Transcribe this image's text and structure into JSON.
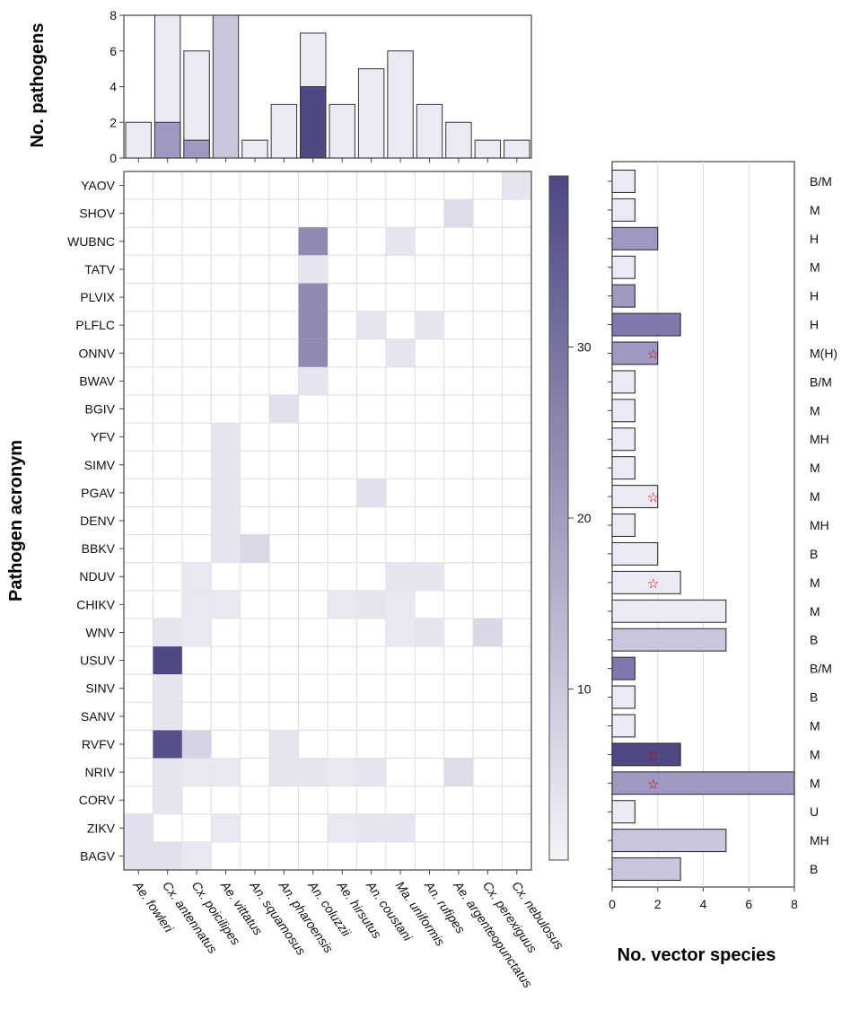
{
  "chart_data": [
    {
      "type": "bar",
      "ylabel": "No. pathogens",
      "ylim": [
        0,
        8
      ],
      "yticks": [
        0,
        2,
        4,
        6,
        8
      ],
      "categories": [
        "Ae. fowleri",
        "Cx. antennatus",
        "Cx. poicilipes",
        "Ae. vittatus",
        "An. squamosus",
        "An. pharoensis",
        "An. coluzzii",
        "Ae. hirsutus",
        "An. coustani",
        "Ma. uniformis",
        "An. rufipes",
        "Ae. argenteopunctatus",
        "Cx. perexiguus",
        "Cx. nebulosus"
      ],
      "values": [
        2,
        8,
        6,
        8,
        1,
        3,
        7,
        3,
        5,
        6,
        3,
        2,
        1,
        1
      ],
      "highlight_values": [
        0,
        2,
        1,
        0,
        0,
        0,
        4,
        0,
        0,
        0,
        0,
        0,
        0,
        0
      ],
      "color_levels": [
        1,
        1,
        1,
        2,
        1,
        1,
        1,
        1,
        1,
        1,
        1,
        1,
        1,
        1
      ]
    },
    {
      "type": "heatmap",
      "ylabel": "Pathogen acronym",
      "x": [
        "Ae. fowleri",
        "Cx. antennatus",
        "Cx. poicilipes",
        "Ae. vittatus",
        "An. squamosus",
        "An. pharoensis",
        "An. coluzzii",
        "Ae. hirsutus",
        "An. coustani",
        "Ma. uniformis",
        "An. rufipes",
        "Ae. argenteopunctatus",
        "Cx. perexiguus",
        "Cx. nebulosus"
      ],
      "y": [
        "YAOV",
        "SHOV",
        "WUBNC",
        "TATV",
        "PLVIX",
        "PLFLC",
        "ONNV",
        "BWAV",
        "BGIV",
        "YFV",
        "SIMV",
        "PGAV",
        "DENV",
        "BBKV",
        "NDUV",
        "CHIKV",
        "WNV",
        "USUV",
        "SINV",
        "SANV",
        "RVFV",
        "NRIV",
        "CORV",
        "ZIKV",
        "BAGV"
      ],
      "cells": [
        [
          "YAOV",
          "Cx. nebulosus",
          2
        ],
        [
          "SHOV",
          "Ae. argenteopunctatus",
          4
        ],
        [
          "WUBNC",
          "An. coluzzii",
          24
        ],
        [
          "WUBNC",
          "Ma. uniformis",
          2
        ],
        [
          "TATV",
          "An. coluzzii",
          2
        ],
        [
          "PLVIX",
          "An. coluzzii",
          24
        ],
        [
          "PLFLC",
          "An. coluzzii",
          24
        ],
        [
          "PLFLC",
          "An. coustani",
          2
        ],
        [
          "PLFLC",
          "An. rufipes",
          2
        ],
        [
          "ONNV",
          "An. coluzzii",
          24
        ],
        [
          "ONNV",
          "Ma. uniformis",
          2
        ],
        [
          "BWAV",
          "An. coluzzii",
          2
        ],
        [
          "BGIV",
          "An. pharoensis",
          3
        ],
        [
          "YFV",
          "Ae. vittatus",
          2
        ],
        [
          "SIMV",
          "Ae. vittatus",
          2
        ],
        [
          "PGAV",
          "Ae. vittatus",
          2
        ],
        [
          "PGAV",
          "An. coustani",
          3
        ],
        [
          "DENV",
          "Ae. vittatus",
          2
        ],
        [
          "BBKV",
          "Ae. vittatus",
          2
        ],
        [
          "BBKV",
          "An. squamosus",
          5
        ],
        [
          "NDUV",
          "Cx. poicilipes",
          1
        ],
        [
          "NDUV",
          "Ma. uniformis",
          2
        ],
        [
          "NDUV",
          "An. rufipes",
          2
        ],
        [
          "CHIKV",
          "Cx. poicilipes",
          1
        ],
        [
          "CHIKV",
          "Ae. vittatus",
          1
        ],
        [
          "CHIKV",
          "Ae. hirsutus",
          1
        ],
        [
          "CHIKV",
          "An. coustani",
          2
        ],
        [
          "CHIKV",
          "Ma. uniformis",
          1
        ],
        [
          "WNV",
          "Cx. antennatus",
          2
        ],
        [
          "WNV",
          "Cx. poicilipes",
          1
        ],
        [
          "WNV",
          "Ma. uniformis",
          1
        ],
        [
          "WNV",
          "An. rufipes",
          2
        ],
        [
          "WNV",
          "Cx. perexiguus",
          5
        ],
        [
          "USUV",
          "Cx. antennatus",
          40
        ],
        [
          "SINV",
          "Cx. antennatus",
          2
        ],
        [
          "SANV",
          "Cx. antennatus",
          2
        ],
        [
          "RVFV",
          "Cx. antennatus",
          38
        ],
        [
          "RVFV",
          "Cx. poicilipes",
          6
        ],
        [
          "RVFV",
          "An. pharoensis",
          2
        ],
        [
          "NRIV",
          "Cx. antennatus",
          2
        ],
        [
          "NRIV",
          "Cx. poicilipes",
          1
        ],
        [
          "NRIV",
          "Ae. vittatus",
          1
        ],
        [
          "NRIV",
          "An. pharoensis",
          2
        ],
        [
          "NRIV",
          "An. coluzzii",
          2
        ],
        [
          "NRIV",
          "Ae. hirsutus",
          1
        ],
        [
          "NRIV",
          "An. coustani",
          2
        ],
        [
          "NRIV",
          "Ae. argenteopunctatus",
          4
        ],
        [
          "CORV",
          "Cx. antennatus",
          2
        ],
        [
          "ZIKV",
          "Ae. fowleri",
          3
        ],
        [
          "ZIKV",
          "Ae. vittatus",
          1
        ],
        [
          "ZIKV",
          "Ae. hirsutus",
          1
        ],
        [
          "ZIKV",
          "An. coustani",
          2
        ],
        [
          "ZIKV",
          "Ma. uniformis",
          2
        ],
        [
          "BAGV",
          "Ae. fowleri",
          3
        ],
        [
          "BAGV",
          "Cx. antennatus",
          3
        ],
        [
          "BAGV",
          "Cx. poicilipes",
          1
        ]
      ],
      "colorbar": {
        "min": 0,
        "max": 40,
        "ticks": [
          10,
          20,
          30
        ],
        "low_color": "#ffffff",
        "high_color": "#4e4883"
      }
    },
    {
      "type": "bar",
      "orientation": "horizontal",
      "xlabel": "No. vector species",
      "xlim": [
        0,
        8
      ],
      "xticks": [
        0,
        2,
        4,
        6,
        8
      ],
      "categories": [
        "YAOV",
        "SHOV",
        "WUBNC",
        "TATV",
        "PLVIX",
        "PLFLC",
        "ONNV",
        "BWAV",
        "BGIV",
        "YFV",
        "SIMV",
        "PGAV",
        "DENV",
        "BBKV",
        "NDUV",
        "CHIKV",
        "WNV",
        "USUV",
        "SINV",
        "SANV",
        "RVFV",
        "NRIV",
        "CORV",
        "ZIKV",
        "BAGV"
      ],
      "values": [
        1,
        1,
        2,
        1,
        1,
        3,
        2,
        1,
        1,
        1,
        1,
        2,
        1,
        2,
        3,
        5,
        5,
        1,
        1,
        1,
        3,
        8,
        1,
        5,
        3
      ],
      "color_levels": [
        1,
        1,
        3,
        1,
        3,
        4,
        3,
        1,
        1,
        1,
        1,
        1,
        1,
        1,
        1,
        1,
        2,
        4,
        1,
        1,
        5,
        3,
        1,
        2,
        2
      ],
      "starred": [
        "ONNV",
        "PGAV",
        "NDUV",
        "RVFV",
        "NRIV"
      ],
      "star_symbol": "☆",
      "host_labels": [
        "B/M",
        "M",
        "H",
        "M",
        "H",
        "H",
        "M(H)",
        "B/M",
        "M",
        "MH",
        "M",
        "M",
        "MH",
        "B",
        "M",
        "M",
        "B",
        "B/M",
        "B",
        "M",
        "M",
        "M",
        "U",
        "MH",
        "B"
      ]
    }
  ],
  "palette": [
    "#ffffff",
    "#ebeaf4",
    "#c8c5dd",
    "#9e99c3",
    "#7e78ac",
    "#4e4883"
  ],
  "frame_color": "#444444",
  "grid_color": "#dddddd",
  "star_color": "#cc0000"
}
